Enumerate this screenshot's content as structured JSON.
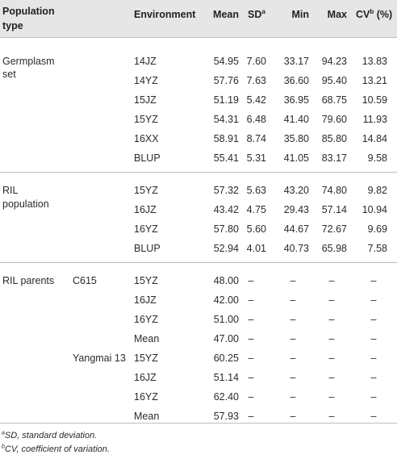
{
  "table": {
    "headers": {
      "population_type": "Population type",
      "environment": "Environment",
      "mean": "Mean",
      "sd": "SD",
      "sd_sup": "a",
      "min": "Min",
      "max": "Max",
      "cv": "CV",
      "cv_sup": "b",
      "cv_unit": "(%)"
    },
    "germplasm": {
      "label_line1": "Germplasm",
      "label_line2": "set",
      "rows": [
        [
          "14JZ",
          "54.95",
          "7.60",
          "33.17",
          "94.23",
          "13.83"
        ],
        [
          "14YZ",
          "57.76",
          "7.63",
          "36.60",
          "95.40",
          "13.21"
        ],
        [
          "15JZ",
          "51.19",
          "5.42",
          "36.95",
          "68.75",
          "10.59"
        ],
        [
          "15YZ",
          "54.31",
          "6.48",
          "41.40",
          "79.60",
          "11.93"
        ],
        [
          "16XX",
          "58.91",
          "8.74",
          "35.80",
          "85.80",
          "14.84"
        ],
        [
          "BLUP",
          "55.41",
          "5.31",
          "41.05",
          "83.17",
          "9.58"
        ]
      ]
    },
    "ril": {
      "label_line1": "RIL",
      "label_line2": "population",
      "rows": [
        [
          "15YZ",
          "57.32",
          "5.63",
          "43.20",
          "74.80",
          "9.82"
        ],
        [
          "16JZ",
          "43.42",
          "4.75",
          "29.43",
          "57.14",
          "10.94"
        ],
        [
          "16YZ",
          "57.80",
          "5.60",
          "44.67",
          "72.67",
          "9.69"
        ],
        [
          "BLUP",
          "52.94",
          "4.01",
          "40.73",
          "65.98",
          "7.58"
        ]
      ]
    },
    "parents": {
      "label": "RIL parents",
      "c615": {
        "name": "C615",
        "rows": [
          [
            "15YZ",
            "48.00",
            "–",
            "–",
            "–",
            "–"
          ],
          [
            "16JZ",
            "42.00",
            "–",
            "–",
            "–",
            "–"
          ],
          [
            "16YZ",
            "51.00",
            "–",
            "–",
            "–",
            "–"
          ],
          [
            "Mean",
            "47.00",
            "–",
            "–",
            "–",
            "–"
          ]
        ]
      },
      "yangmai": {
        "name": "Yangmai 13",
        "rows": [
          [
            "15YZ",
            "60.25",
            "–",
            "–",
            "–",
            "–"
          ],
          [
            "16JZ",
            "51.14",
            "–",
            "–",
            "–",
            "–"
          ],
          [
            "16YZ",
            "62.40",
            "–",
            "–",
            "–",
            "–"
          ],
          [
            "Mean",
            "57.93",
            "–",
            "–",
            "–",
            "–"
          ]
        ]
      }
    }
  },
  "footnotes": [
    {
      "mark": "a",
      "text": "SD, standard deviation."
    },
    {
      "mark": "b",
      "text": "CV, coefficient of variation."
    }
  ]
}
